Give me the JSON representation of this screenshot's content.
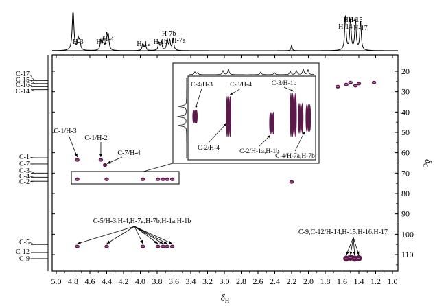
{
  "chart_data": {
    "type": "heatmap",
    "subtype": "2D HSQC NMR spectrum",
    "x_axis": {
      "label_symbol": "δ",
      "label_subscript": "H",
      "range": [
        5.0,
        1.0
      ],
      "reversed": true,
      "ticks": [
        "5.0",
        "4.8",
        "4.6",
        "4.4",
        "4.2",
        "4.0",
        "3.8",
        "3.6",
        "3.4",
        "3.2",
        "3.0",
        "2.8",
        "2.6",
        "2.4",
        "2.2",
        "2.0",
        "1.8",
        "1.6",
        "1.4",
        "1.2",
        "1.0"
      ]
    },
    "y_axis": {
      "label_symbol": "δ",
      "label_subscript": "C",
      "range": [
        15,
        117
      ],
      "position": "right",
      "ticks": [
        "20",
        "30",
        "40",
        "50",
        "60",
        "70",
        "80",
        "90",
        "100",
        "110"
      ]
    },
    "proton_labels": [
      {
        "text": "H-3",
        "h": 4.74
      },
      {
        "text": "H-2",
        "h": 4.46
      },
      {
        "text": "H-4",
        "h": 4.38
      },
      {
        "text": "H-1a",
        "h": 3.96
      },
      {
        "text": "H-1b",
        "h": 3.76
      },
      {
        "text": "H-7b",
        "h": 3.66
      },
      {
        "text": "H-7a",
        "h": 3.61
      },
      {
        "text": "H-14",
        "h": 1.56
      },
      {
        "text": "H-16",
        "h": 1.5
      },
      {
        "text": "H-15",
        "h": 1.44
      },
      {
        "text": "H-17",
        "h": 1.38
      }
    ],
    "carbon_labels": [
      {
        "text": "C-17",
        "c": 24.5
      },
      {
        "text": "C-15",
        "c": 26.0
      },
      {
        "text": "C-16",
        "c": 27.5
      },
      {
        "text": "C-14",
        "c": 29.0
      },
      {
        "text": "C-1",
        "c": 62.5
      },
      {
        "text": "C-7",
        "c": 65.5
      },
      {
        "text": "C-3",
        "c": 70.0
      },
      {
        "text": "C-4",
        "c": 72.0
      },
      {
        "text": "C-2",
        "c": 74.0
      },
      {
        "text": "C-5",
        "c": 105.0
      },
      {
        "text": "C-12",
        "c": 109.0
      },
      {
        "text": "C-9",
        "c": 112.0
      }
    ],
    "peaks": [
      {
        "h": 4.75,
        "c": 63.5
      },
      {
        "h": 4.47,
        "c": 63.5
      },
      {
        "h": 4.42,
        "c": 66.0
      },
      {
        "h": 4.75,
        "c": 73.0
      },
      {
        "h": 4.4,
        "c": 73.0
      },
      {
        "h": 3.97,
        "c": 73.0
      },
      {
        "h": 3.79,
        "c": 73.0
      },
      {
        "h": 3.73,
        "c": 73.0
      },
      {
        "h": 3.68,
        "c": 73.0
      },
      {
        "h": 3.62,
        "c": 73.0
      },
      {
        "h": 2.2,
        "c": 74.3
      },
      {
        "h": 4.75,
        "c": 106.0
      },
      {
        "h": 4.4,
        "c": 106.0
      },
      {
        "h": 3.97,
        "c": 106.0
      },
      {
        "h": 3.79,
        "c": 106.0
      },
      {
        "h": 3.73,
        "c": 106.0
      },
      {
        "h": 3.68,
        "c": 106.0
      },
      {
        "h": 3.62,
        "c": 106.0
      },
      {
        "h": 1.55,
        "c": 112.0
      },
      {
        "h": 1.5,
        "c": 111.5
      },
      {
        "h": 1.45,
        "c": 112.0
      },
      {
        "h": 1.4,
        "c": 111.8
      },
      {
        "h": 1.65,
        "c": 27.5
      },
      {
        "h": 1.55,
        "c": 26.5
      },
      {
        "h": 1.5,
        "c": 25.5
      },
      {
        "h": 1.44,
        "c": 27.0
      },
      {
        "h": 1.4,
        "c": 26.0
      },
      {
        "h": 1.22,
        "c": 25.5
      }
    ],
    "annotations": [
      {
        "text": "C-1/H-3",
        "target_h": 4.75,
        "target_c": 63.5
      },
      {
        "text": "C-1/H-2",
        "target_h": 4.47,
        "target_c": 63.5
      },
      {
        "text": "C-7/H-4",
        "target_h": 4.42,
        "target_c": 66.0
      },
      {
        "text": "C-5/H-3,H-4,H-7a,H-7b,H-1a,H-1b",
        "target_c": 106.0
      },
      {
        "text": "C-9,C-12/H-14,H-15,H-16,H-17",
        "target_c": 112.0
      }
    ],
    "inset": {
      "labels": [
        "C-4/H-3",
        "C-3/H-4",
        "C-3/H-1b",
        "C-2/H-4",
        "C-2/H-1a,H-1b",
        "C-4/H-7a,H-7b"
      ]
    }
  },
  "colors": {
    "peak": "#5a1a4a",
    "axis": "#000000"
  }
}
